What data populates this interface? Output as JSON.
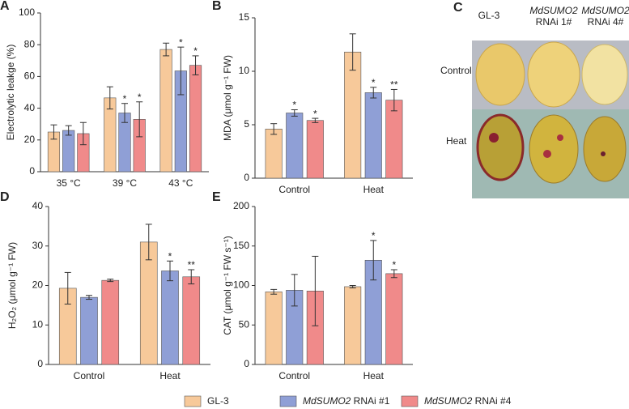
{
  "legend": [
    {
      "name": "GL-3",
      "color": "#f7c99a"
    },
    {
      "name": "MdSUMO2 RNAi #1",
      "color": "#8f9fd6"
    },
    {
      "name": "MdSUMO2 RNAi #4",
      "color": "#f08a8a"
    }
  ],
  "photo_panel": {
    "label": "C",
    "columns": [
      [
        "GL-3"
      ],
      [
        "MdSUMO2",
        "RNAi 1#"
      ],
      [
        "MdSUMO2",
        "RNAi 4#"
      ]
    ],
    "rows": [
      "Control",
      "Heat"
    ]
  },
  "chart_data": [
    {
      "type": "bar",
      "label": "A",
      "y_label": "Electrolytic leakge (%)",
      "categories": [
        "35 °C",
        "39 °C",
        "43 °C"
      ],
      "ylim": [
        0,
        100
      ],
      "yticks": [
        0,
        20,
        40,
        60,
        80,
        100
      ],
      "series": [
        {
          "values": [
            25,
            46.5,
            77
          ],
          "errors": [
            4.5,
            7,
            4
          ],
          "stars": [
            null,
            null,
            null
          ]
        },
        {
          "values": [
            26,
            37,
            63.5
          ],
          "errors": [
            3,
            6,
            15
          ],
          "stars": [
            null,
            "*",
            "*"
          ]
        },
        {
          "values": [
            24,
            33,
            67
          ],
          "errors": [
            7,
            11,
            6
          ],
          "stars": [
            null,
            "*",
            "*"
          ]
        }
      ]
    },
    {
      "type": "bar",
      "label": "B",
      "y_label": "MDA (μmol g⁻¹ FW)",
      "categories": [
        "Control",
        "Heat"
      ],
      "ylim": [
        0,
        15
      ],
      "yticks": [
        0,
        5,
        10,
        15
      ],
      "series": [
        {
          "values": [
            4.6,
            11.8
          ],
          "errors": [
            0.5,
            1.7
          ],
          "stars": [
            null,
            null
          ]
        },
        {
          "values": [
            6.1,
            8.0
          ],
          "errors": [
            0.3,
            0.5
          ],
          "stars": [
            "*",
            "*"
          ]
        },
        {
          "values": [
            5.4,
            7.3
          ],
          "errors": [
            0.2,
            1.0
          ],
          "stars": [
            "*",
            "**"
          ]
        }
      ]
    },
    {
      "type": "bar",
      "label": "D",
      "y_label": "H₂O₂ (μmol g⁻¹ FW)",
      "categories": [
        "Control",
        "Heat"
      ],
      "ylim": [
        0,
        40
      ],
      "yticks": [
        0,
        10,
        20,
        30,
        40
      ],
      "series": [
        {
          "values": [
            19.3,
            31
          ],
          "errors": [
            4,
            4.5
          ],
          "stars": [
            null,
            null
          ]
        },
        {
          "values": [
            17,
            23.7
          ],
          "errors": [
            0.5,
            2.5
          ],
          "stars": [
            null,
            "*"
          ]
        },
        {
          "values": [
            21.3,
            22.2
          ],
          "errors": [
            0.3,
            1.8
          ],
          "stars": [
            null,
            "**"
          ]
        }
      ]
    },
    {
      "type": "bar",
      "label": "E",
      "y_label": "CAT (μmol g⁻¹ FW s⁻¹)",
      "categories": [
        "Control",
        "Heat"
      ],
      "ylim": [
        0,
        200
      ],
      "yticks": [
        0,
        50,
        100,
        150,
        200
      ],
      "series": [
        {
          "values": [
            92,
            98.5
          ],
          "errors": [
            3,
            1.5
          ],
          "stars": [
            null,
            null
          ]
        },
        {
          "values": [
            94,
            132
          ],
          "errors": [
            20,
            25
          ],
          "stars": [
            null,
            "*"
          ]
        },
        {
          "values": [
            93,
            115
          ],
          "errors": [
            44,
            5
          ],
          "stars": [
            null,
            "*"
          ]
        }
      ]
    }
  ]
}
